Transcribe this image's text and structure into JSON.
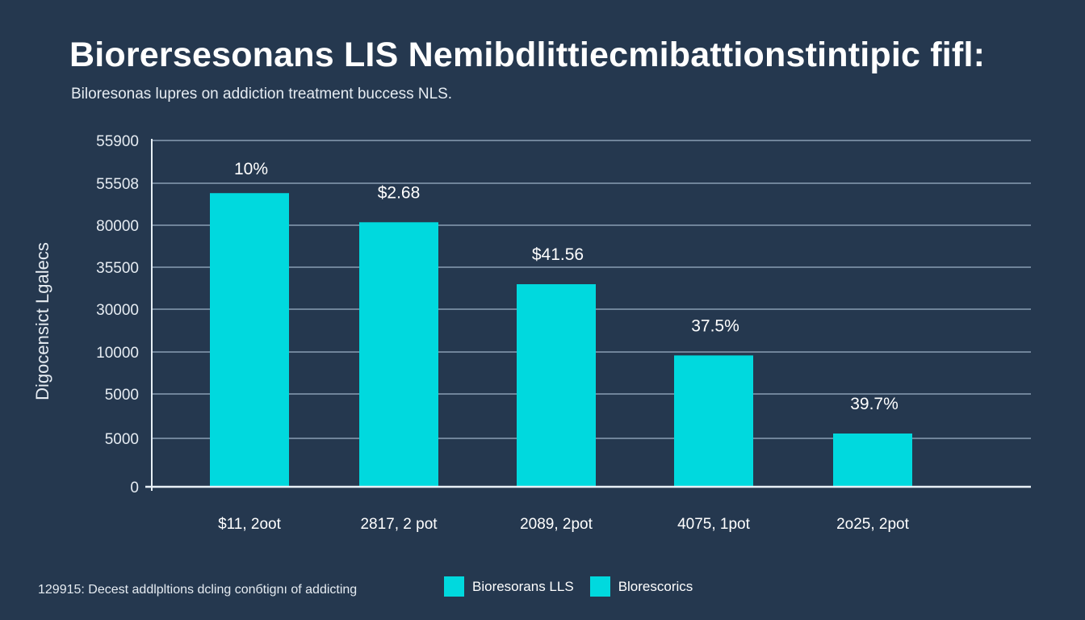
{
  "header": {
    "title": "Biorersesonans LIS Nemibdlittiecmibattionstintipic fifl:",
    "subtitle": "Biloresonas lupres on addiction treatment buccess NLS."
  },
  "colors": {
    "background": "#25384f",
    "bar": "#00d9de",
    "grid": "#8a9db3",
    "axis": "#e8f0f6",
    "text": "#ffffff"
  },
  "chart_data": {
    "type": "bar",
    "title": "Biorersesonans LIS Nemibdlittiecmibattionstintipic fifl:",
    "subtitle": "Biloresonas lupres on addiction treatment buccess NLS.",
    "xlabel": "",
    "ylabel": "Digocensict Lgalecs",
    "categories": [
      "$11, 2oot",
      "2817, 2 pot",
      "2089, 2pot",
      "4075, 1pot",
      "2o25, 2pot"
    ],
    "values": [
      47400,
      42700,
      32700,
      21200,
      8600
    ],
    "data_labels": [
      "10%",
      "$2.68",
      "$41.56",
      "37.5%",
      "39.7%"
    ],
    "y_tick_labels": [
      "0",
      "5000",
      "5000",
      "10000",
      "30000",
      "35500",
      "80000",
      "55508",
      "55900"
    ],
    "ylim": [
      0,
      55900
    ],
    "grid": true,
    "legend": {
      "placement": "bottom",
      "entries": [
        "Bioresorans LLS",
        "Blorescorics"
      ]
    },
    "footnote": "129915: Decest addlpltions dcling conбtignı of addicting"
  }
}
